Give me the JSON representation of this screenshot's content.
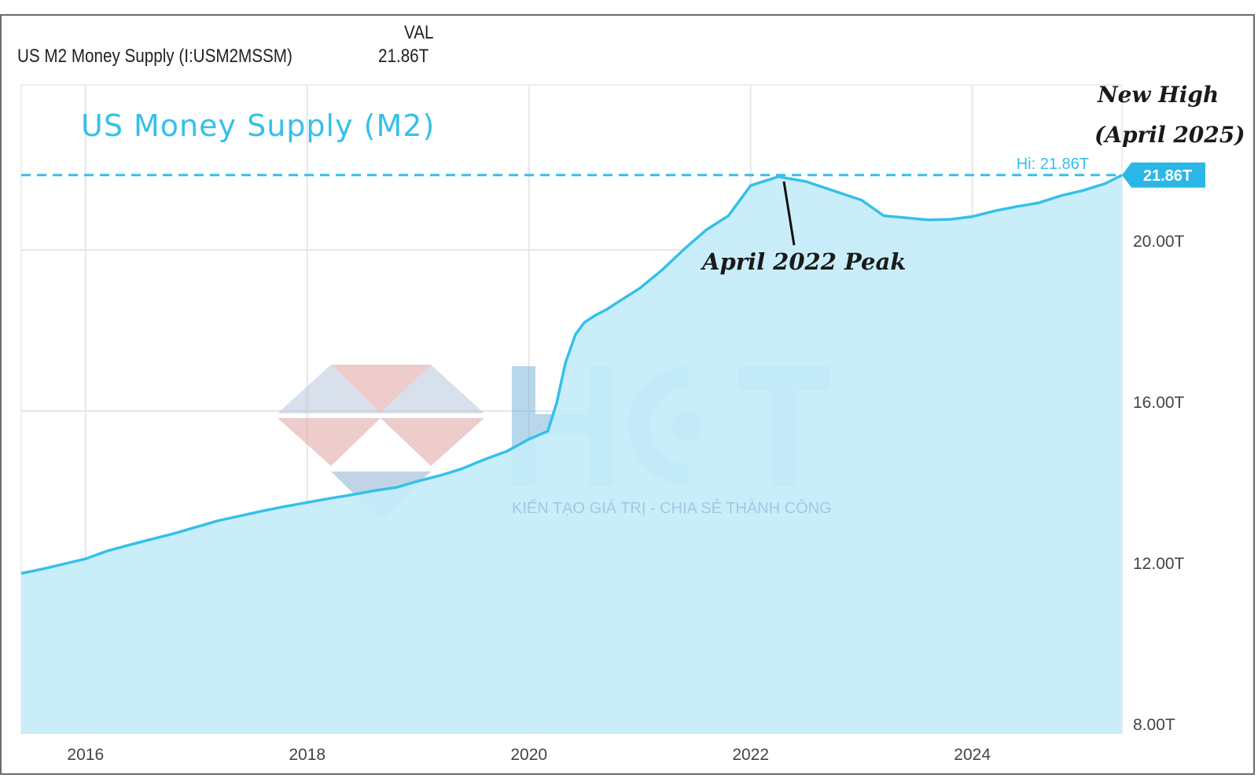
{
  "header": {
    "series_label": "US M2 Money Supply (I:USM2MSSM)",
    "value_label": "VAL",
    "value": "21.86T"
  },
  "annotations": {
    "title": "US Money Supply (M2)",
    "peak": "April 2022 Peak",
    "new_high_line1": "New High",
    "new_high_line2": "(April 2025)",
    "hi_label": "Hi: 21.86T",
    "current_badge": "21.86T"
  },
  "watermark": {
    "logo_text": "HCT",
    "tagline": "KIẾN TẠO GIÁ TRỊ - CHIA SẺ THÀNH CÔNG"
  },
  "colors": {
    "line": "#35c0ea",
    "fill": "#c3ecfa",
    "grid": "#e6e6e6",
    "badge": "#2bb6e8"
  },
  "chart_data": {
    "type": "area",
    "title": "",
    "xlabel": "",
    "ylabel": "",
    "x_ticks": [
      2016,
      2018,
      2020,
      2022,
      2024
    ],
    "x_tick_labels": [
      "2016",
      "2018",
      "2020",
      "2022",
      "2024"
    ],
    "y_ticks": [
      8,
      12,
      16,
      20
    ],
    "y_tick_labels": [
      "8.00T",
      "12.00T",
      "16.00T",
      "20.00T"
    ],
    "xlim": [
      2015.42,
      2025.35
    ],
    "ylim": [
      8,
      24.1
    ],
    "grid": true,
    "hi_value": 21.86,
    "series": [
      {
        "name": "US M2 Money Supply (I:USM2MSSM)",
        "x": [
          2015.42,
          2015.6,
          2015.8,
          2016.0,
          2016.2,
          2016.4,
          2016.6,
          2016.8,
          2017.0,
          2017.2,
          2017.4,
          2017.6,
          2017.8,
          2018.0,
          2018.2,
          2018.4,
          2018.6,
          2018.8,
          2019.0,
          2019.2,
          2019.4,
          2019.6,
          2019.8,
          2020.0,
          2020.17,
          2020.25,
          2020.33,
          2020.42,
          2020.5,
          2020.6,
          2020.7,
          2020.8,
          2021.0,
          2021.2,
          2021.4,
          2021.6,
          2021.8,
          2022.0,
          2022.25,
          2022.5,
          2022.75,
          2023.0,
          2023.2,
          2023.4,
          2023.6,
          2023.8,
          2024.0,
          2024.2,
          2024.4,
          2024.6,
          2024.8,
          2025.0,
          2025.2,
          2025.35
        ],
        "values": [
          11.97,
          12.07,
          12.2,
          12.33,
          12.53,
          12.68,
          12.82,
          12.96,
          13.12,
          13.28,
          13.4,
          13.52,
          13.63,
          13.73,
          13.83,
          13.92,
          14.02,
          14.1,
          14.26,
          14.4,
          14.57,
          14.8,
          15.0,
          15.3,
          15.5,
          16.2,
          17.2,
          17.9,
          18.2,
          18.38,
          18.52,
          18.7,
          19.05,
          19.5,
          20.02,
          20.5,
          20.85,
          21.6,
          21.82,
          21.7,
          21.47,
          21.24,
          20.85,
          20.8,
          20.75,
          20.76,
          20.83,
          20.97,
          21.08,
          21.17,
          21.35,
          21.48,
          21.65,
          21.86
        ]
      }
    ]
  }
}
